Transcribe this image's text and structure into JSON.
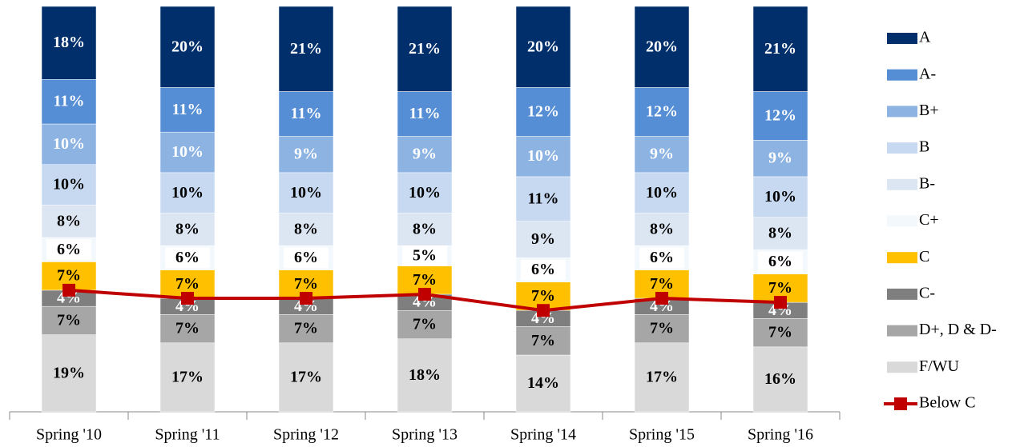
{
  "chart_data": {
    "type": "bar",
    "stacked": true,
    "categories": [
      "Spring '10",
      "Spring '11",
      "Spring '12",
      "Spring '13",
      "Spring '14",
      "Spring '15",
      "Spring '16"
    ],
    "ylim": [
      0,
      100
    ],
    "series": [
      {
        "name": "F/WU",
        "color": "#d9d9d9",
        "values": [
          19,
          17,
          17,
          18,
          14,
          17,
          16
        ],
        "value_labels": [
          "19%",
          "17%",
          "17%",
          "18%",
          "14%",
          "17%",
          "16%"
        ]
      },
      {
        "name": "D+, D & D-",
        "color": "#a6a6a6",
        "values": [
          7,
          7,
          7,
          7,
          7,
          7,
          7
        ],
        "value_labels": [
          "7%",
          "7%",
          "7%",
          "7%",
          "7%",
          "7%",
          "7%"
        ]
      },
      {
        "name": "C-",
        "color": "#7f7f7f",
        "values": [
          4,
          4,
          4,
          4,
          4,
          4,
          4
        ],
        "value_labels": [
          "4%",
          "4%",
          "4%",
          "4%",
          "4%",
          "4%",
          "4%"
        ]
      },
      {
        "name": "C",
        "color": "#ffc000",
        "values": [
          7,
          7,
          7,
          7,
          7,
          7,
          7
        ],
        "value_labels": [
          "7%",
          "7%",
          "7%",
          "7%",
          "7%",
          "7%",
          "7%"
        ]
      },
      {
        "name": "C+",
        "color": "#f3f8fd",
        "values": [
          6,
          6,
          6,
          5,
          6,
          6,
          6
        ],
        "value_labels": [
          "6%",
          "6%",
          "6%",
          "5%",
          "6%",
          "6%",
          "6%"
        ]
      },
      {
        "name": "B-",
        "color": "#dce6f2",
        "values": [
          8,
          8,
          8,
          8,
          9,
          8,
          8
        ],
        "value_labels": [
          "8%",
          "8%",
          "8%",
          "8%",
          "9%",
          "8%",
          "8%"
        ]
      },
      {
        "name": "B",
        "color": "#c6d9f1",
        "values": [
          10,
          10,
          10,
          10,
          11,
          10,
          10
        ],
        "value_labels": [
          "10%",
          "10%",
          "10%",
          "10%",
          "11%",
          "10%",
          "10%"
        ]
      },
      {
        "name": "B+",
        "color": "#8db3e2",
        "values": [
          10,
          10,
          9,
          9,
          10,
          9,
          9
        ],
        "value_labels": [
          "10%",
          "10%",
          "9%",
          "9%",
          "10%",
          "9%",
          "9%"
        ]
      },
      {
        "name": "A-",
        "color": "#558ed5",
        "values": [
          11,
          11,
          11,
          11,
          12,
          12,
          12
        ],
        "value_labels": [
          "11%",
          "11%",
          "11%",
          "11%",
          "12%",
          "12%",
          "12%"
        ]
      },
      {
        "name": "A",
        "color": "#002f6c",
        "values": [
          18,
          20,
          21,
          21,
          20,
          20,
          21
        ],
        "value_labels": [
          "18%",
          "20%",
          "21%",
          "21%",
          "20%",
          "20%",
          "21%"
        ]
      },
      {
        "name": "Below C",
        "color": "#c00000",
        "type": "line",
        "values": [
          30,
          28,
          28,
          29,
          25,
          28,
          27
        ]
      }
    ]
  }
}
